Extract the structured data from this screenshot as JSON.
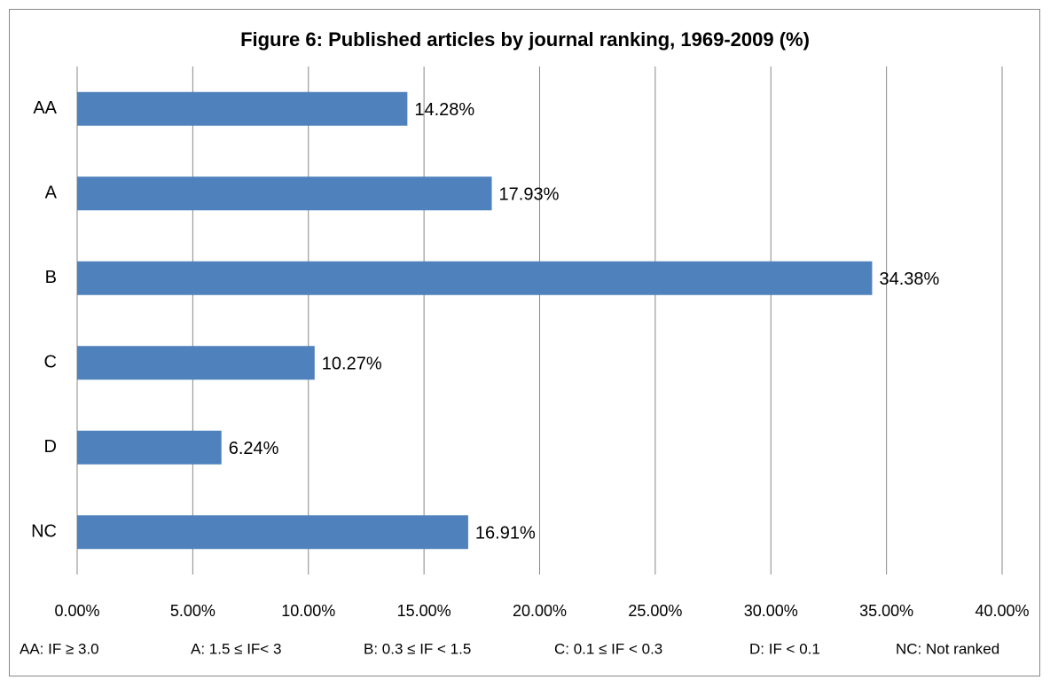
{
  "chart_data": {
    "type": "bar",
    "orientation": "horizontal",
    "title": "Figure 6: Published articles by journal ranking, 1969-2009 (%)",
    "categories": [
      "AA",
      "A",
      "B",
      "C",
      "D",
      "NC"
    ],
    "values": [
      14.28,
      17.93,
      34.38,
      10.27,
      6.24,
      16.91
    ],
    "value_labels": [
      "14.28%",
      "17.93%",
      "34.38%",
      "10.27%",
      "6.24%",
      "16.91%"
    ],
    "color": "#4f81bd",
    "xlim": [
      0,
      40
    ],
    "xticks": [
      {
        "value": 0,
        "label": "0.00%"
      },
      {
        "value": 5,
        "label": "5.00%"
      },
      {
        "value": 10,
        "label": "10.00%"
      },
      {
        "value": 15,
        "label": "15.00%"
      },
      {
        "value": 20,
        "label": "20.00%"
      },
      {
        "value": 25,
        "label": "25.00%"
      },
      {
        "value": 30,
        "label": "30.00%"
      },
      {
        "value": 35,
        "label": "35.00%"
      },
      {
        "value": 40,
        "label": "40.00%"
      }
    ],
    "grid": true,
    "notes": [
      "AA: IF ≥ 3.0",
      "A: 1.5 ≤ IF< 3",
      "B: 0.3 ≤  IF < 1.5",
      "C: 0.1 ≤ IF < 0.3",
      "D: IF < 0.1",
      "NC: Not ranked"
    ]
  }
}
